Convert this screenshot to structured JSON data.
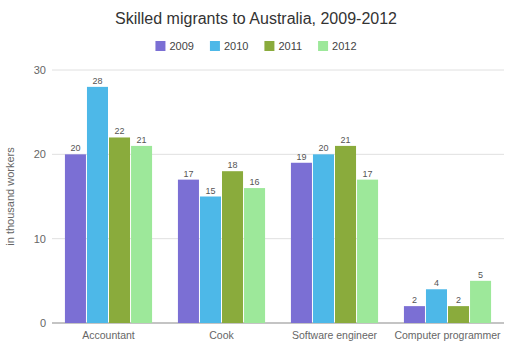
{
  "chart_data": {
    "type": "bar",
    "title": "Skilled migrants to Australia, 2009-2012",
    "ylabel": "in thousand workers",
    "categories": [
      "Accountant",
      "Cook",
      "Software engineer",
      "Computer programmer"
    ],
    "series": [
      {
        "name": "2009",
        "color": "#7b6fd4",
        "values": [
          20,
          17,
          19,
          2
        ]
      },
      {
        "name": "2010",
        "color": "#4db8e8",
        "values": [
          28,
          15,
          20,
          4
        ]
      },
      {
        "name": "2011",
        "color": "#8aab3c",
        "values": [
          22,
          18,
          21,
          2
        ]
      },
      {
        "name": "2012",
        "color": "#9de89a",
        "values": [
          21,
          16,
          17,
          5
        ]
      }
    ],
    "ylim": [
      0,
      30
    ],
    "yticks": [
      0,
      10,
      20,
      30
    ],
    "grid": true,
    "legend": "top",
    "data_labels": true
  }
}
